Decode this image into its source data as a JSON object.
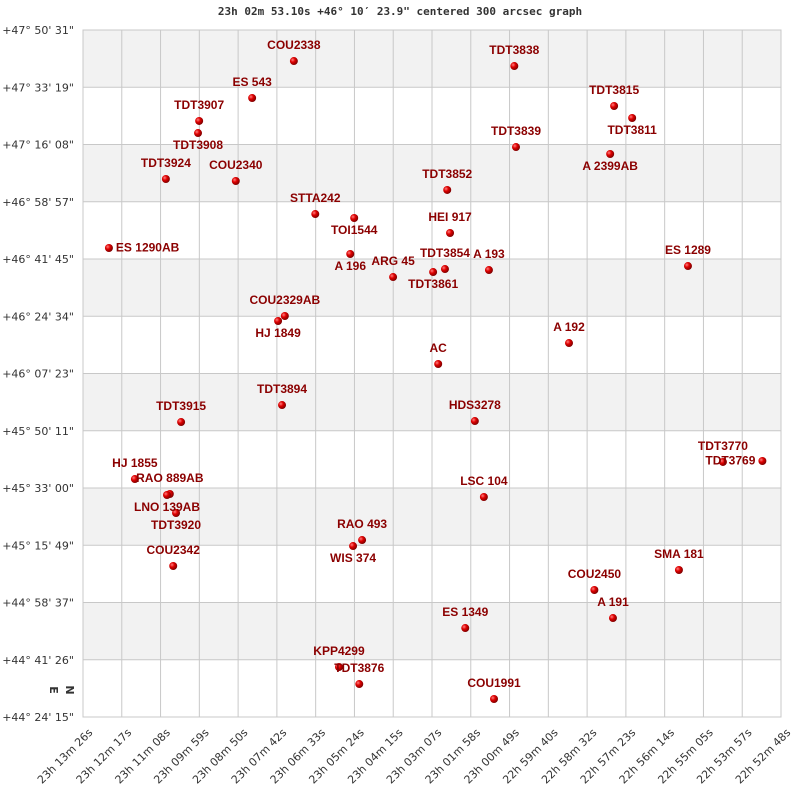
{
  "chart_data": {
    "type": "scatter",
    "title": "23h 02m 53.10s +46° 10′ 23.9\" centered 300 arcsec graph",
    "x_ticks": [
      "23h 13m 26s",
      "23h 12m 17s",
      "23h 11m 08s",
      "23h 09m 59s",
      "23h 08m 50s",
      "23h 07m 42s",
      "23h 06m 33s",
      "23h 05m 24s",
      "23h 04m 15s",
      "23h 03m 07s",
      "23h 01m 58s",
      "23h 00m 49s",
      "22h 59m 40s",
      "22h 58m 32s",
      "22h 57m 23s",
      "22h 56m 14s",
      "22h 55m 05s",
      "22h 53m 57s",
      "22h 52m 48s"
    ],
    "y_ticks": [
      "+47° 50' 31\"",
      "+47° 33' 19\"",
      "+47° 16' 08\"",
      "+46° 58' 57\"",
      "+46° 41' 45\"",
      "+46° 24' 34\"",
      "+46° 07' 23\"",
      "+45° 50' 11\"",
      "+45° 33' 00\"",
      "+45° 15' 49\"",
      "+44° 58' 37\"",
      "+44° 41' 26\"",
      "+44° 24' 15\""
    ],
    "xlim": [
      "23h 13m 26s",
      "22h 52m 48s"
    ],
    "ylim": [
      "+44° 24' 15\"",
      "+47° 50' 31\""
    ],
    "x_reversed": true,
    "grid": true,
    "band_colors": [
      "#f2f2f2",
      "#ffffff"
    ],
    "marker_color": "#dd0000",
    "label_color": "#8b0000",
    "compass": {
      "north": "N",
      "east": "E"
    },
    "points": [
      {
        "name": "COU2338",
        "ra": "23 07 12",
        "dec": "+47 41 12"
      },
      {
        "name": "TDT3838",
        "ra": "23 00 41",
        "dec": "+47 39 42"
      },
      {
        "name": "ES  543",
        "ra": "23 08 26",
        "dec": "+47 30 06"
      },
      {
        "name": "TDT3907",
        "ra": "23 10 00",
        "dec": "+47 23 12"
      },
      {
        "name": "TDT3908",
        "ra": "23 10 02",
        "dec": "+47 19 35"
      },
      {
        "name": "TDT3815",
        "ra": "22 57 44",
        "dec": "+47 27 42"
      },
      {
        "name": "TDT3811",
        "ra": "22 57 12",
        "dec": "+47 24 06"
      },
      {
        "name": "TDT3839",
        "ra": "23 00 38",
        "dec": "+47 15 23"
      },
      {
        "name": "A  2399AB",
        "ra": "22 57 51",
        "dec": "+47 13 17"
      },
      {
        "name": "TDT3924",
        "ra": "23 10 59",
        "dec": "+47 05 47"
      },
      {
        "name": "COU2340",
        "ra": "23 08 55",
        "dec": "+47 05 11"
      },
      {
        "name": "TDT3852",
        "ra": "23 02 40",
        "dec": "+47 02 29"
      },
      {
        "name": "STTA242",
        "ra": "23 06 34",
        "dec": "+46 55 16"
      },
      {
        "name": "TOI1544",
        "ra": "23 05 25",
        "dec": "+46 54 04"
      },
      {
        "name": "HEI 917",
        "ra": "23 02 35",
        "dec": "+46 49 34"
      },
      {
        "name": "ES 1290AB",
        "ra": "23 12 40",
        "dec": "+46 45 04"
      },
      {
        "name": "A   196",
        "ra": "23 05 32",
        "dec": "+46 43 16"
      },
      {
        "name": "ARG  45",
        "ra": "23 04 16",
        "dec": "+46 36 21"
      },
      {
        "name": "TDT3861",
        "ra": "23 03 05",
        "dec": "+46 37 51"
      },
      {
        "name": "TDT3854",
        "ra": "23 02 44",
        "dec": "+46 38 45"
      },
      {
        "name": "A   193",
        "ra": "23 01 26",
        "dec": "+46 38 27"
      },
      {
        "name": "ES 1289",
        "ra": "22 55 33",
        "dec": "+46 39 39"
      },
      {
        "name": "COU2329AB",
        "ra": "23 07 28",
        "dec": "+46 24 39"
      },
      {
        "name": "HJ 1849",
        "ra": "23 07 40",
        "dec": "+46 23 09"
      },
      {
        "name": "A   192",
        "ra": "22 59 04",
        "dec": "+46 16 32"
      },
      {
        "name": "AC",
        "ra": "23 02 56",
        "dec": "+46 10 14"
      },
      {
        "name": "TDT3894",
        "ra": "23 07 33",
        "dec": "+45 57 55"
      },
      {
        "name": "TDT3915",
        "ra": "23 10 32",
        "dec": "+45 52 49"
      },
      {
        "name": "HDS3278",
        "ra": "23 01 51",
        "dec": "+45 53 07"
      },
      {
        "name": "TDT3770",
        "ra": "22 54 31",
        "dec": "+45 40 49"
      },
      {
        "name": "TDT3769",
        "ra": "22 53 21",
        "dec": "+45 41 07"
      },
      {
        "name": "HJ 1855",
        "ra": "23 11 54",
        "dec": "+45 35 42"
      },
      {
        "name": "RAO 889AB",
        "ra": "23 10 52",
        "dec": "+45 31 12"
      },
      {
        "name": "LNO 139AB",
        "ra": "23 10 57",
        "dec": "+45 30 54"
      },
      {
        "name": "TDT3920",
        "ra": "23 10 41",
        "dec": "+45 25 30"
      },
      {
        "name": "LSC 104",
        "ra": "23 01 35",
        "dec": "+45 30 18"
      },
      {
        "name": "RAO 493",
        "ra": "23 05 11",
        "dec": "+45 17 23"
      },
      {
        "name": "WIS 374",
        "ra": "23 05 27",
        "dec": "+45 15 35"
      },
      {
        "name": "COU2342",
        "ra": "23 10 46",
        "dec": "+45 09 35"
      },
      {
        "name": "SMA 181",
        "ra": "22 55 49",
        "dec": "+45 08 23"
      },
      {
        "name": "COU2450",
        "ra": "22 58 19",
        "dec": "+45 02 23"
      },
      {
        "name": "A   191",
        "ra": "22 57 46",
        "dec": "+44 53 58"
      },
      {
        "name": "ES 1349",
        "ra": "23 02 08",
        "dec": "+44 50 58"
      },
      {
        "name": "KPP4299",
        "ra": "23 05 52",
        "dec": "+44 39 15"
      },
      {
        "name": "TDT3876",
        "ra": "23 05 16",
        "dec": "+44 34 09"
      },
      {
        "name": "COU1991",
        "ra": "23 01 17",
        "dec": "+44 29 39"
      }
    ]
  }
}
